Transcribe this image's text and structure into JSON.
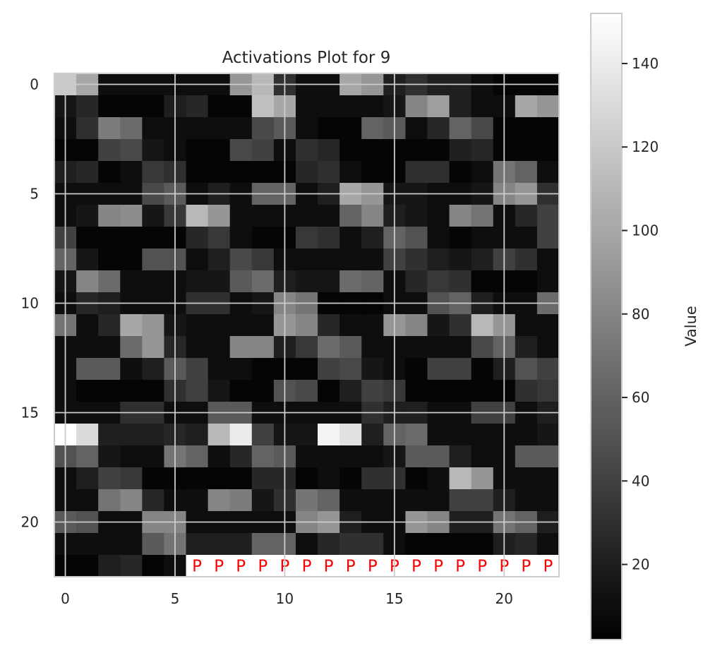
{
  "chart_data": {
    "type": "heatmap",
    "title": "Activations Plot for 9",
    "colormap": "gray",
    "grid": true,
    "colorbar": {
      "label": "Value",
      "min": 2,
      "max": 152,
      "ticks": [
        20,
        40,
        60,
        80,
        100,
        120,
        140
      ]
    },
    "x_ticks": [
      0,
      5,
      10,
      15,
      20
    ],
    "y_ticks": [
      0,
      5,
      10,
      15,
      20
    ],
    "rows": 23,
    "cols": 23,
    "pad_marker": "P",
    "pad_color": "#ff0000",
    "pad_cells": [
      [
        22,
        6
      ],
      [
        22,
        7
      ],
      [
        22,
        8
      ],
      [
        22,
        9
      ],
      [
        22,
        10
      ],
      [
        22,
        11
      ],
      [
        22,
        12
      ],
      [
        22,
        13
      ],
      [
        22,
        14
      ],
      [
        22,
        15
      ],
      [
        22,
        16
      ],
      [
        22,
        17
      ],
      [
        22,
        18
      ],
      [
        22,
        19
      ],
      [
        22,
        20
      ],
      [
        22,
        21
      ],
      [
        22,
        22
      ]
    ],
    "values": [
      [
        120,
        100,
        10,
        10,
        10,
        10,
        10,
        10,
        90,
        110,
        30,
        10,
        10,
        100,
        90,
        20,
        30,
        20,
        20,
        10,
        5,
        5,
        5
      ],
      [
        15,
        25,
        5,
        5,
        5,
        20,
        25,
        5,
        5,
        115,
        100,
        10,
        10,
        10,
        10,
        15,
        80,
        95,
        20,
        10,
        10,
        100,
        90
      ],
      [
        10,
        30,
        75,
        65,
        10,
        10,
        10,
        10,
        10,
        45,
        55,
        10,
        5,
        5,
        60,
        55,
        10,
        25,
        60,
        45,
        5,
        5,
        5
      ],
      [
        5,
        5,
        40,
        45,
        15,
        10,
        5,
        5,
        45,
        40,
        10,
        30,
        25,
        5,
        5,
        5,
        5,
        5,
        20,
        25,
        5,
        5,
        5
      ],
      [
        20,
        25,
        5,
        10,
        35,
        30,
        5,
        5,
        5,
        5,
        5,
        25,
        30,
        10,
        5,
        5,
        30,
        30,
        5,
        10,
        70,
        60,
        10
      ],
      [
        10,
        10,
        10,
        10,
        45,
        55,
        10,
        20,
        10,
        60,
        60,
        10,
        20,
        100,
        90,
        15,
        15,
        10,
        10,
        15,
        80,
        90,
        30
      ],
      [
        10,
        15,
        80,
        85,
        15,
        35,
        110,
        90,
        10,
        10,
        10,
        10,
        10,
        60,
        80,
        20,
        15,
        10,
        80,
        70,
        10,
        25,
        40
      ],
      [
        40,
        5,
        5,
        5,
        5,
        5,
        25,
        35,
        10,
        5,
        5,
        35,
        30,
        10,
        20,
        60,
        50,
        10,
        5,
        10,
        10,
        10,
        40
      ],
      [
        60,
        15,
        5,
        5,
        50,
        50,
        10,
        20,
        45,
        35,
        10,
        10,
        10,
        10,
        10,
        40,
        30,
        20,
        15,
        20,
        40,
        30,
        10
      ],
      [
        15,
        80,
        65,
        10,
        10,
        10,
        15,
        15,
        55,
        65,
        20,
        15,
        15,
        65,
        60,
        10,
        25,
        35,
        30,
        5,
        5,
        5,
        10
      ],
      [
        10,
        25,
        20,
        10,
        10,
        10,
        30,
        30,
        10,
        15,
        80,
        70,
        5,
        5,
        5,
        10,
        10,
        50,
        60,
        20,
        10,
        10,
        65
      ],
      [
        70,
        10,
        25,
        100,
        90,
        15,
        10,
        10,
        10,
        10,
        90,
        80,
        25,
        10,
        10,
        90,
        80,
        15,
        30,
        110,
        90,
        10,
        10
      ],
      [
        10,
        10,
        10,
        65,
        90,
        25,
        10,
        10,
        80,
        80,
        20,
        35,
        65,
        55,
        10,
        10,
        10,
        10,
        10,
        45,
        60,
        20,
        10
      ],
      [
        10,
        55,
        55,
        10,
        20,
        55,
        40,
        10,
        10,
        5,
        5,
        5,
        40,
        45,
        15,
        10,
        5,
        40,
        40,
        5,
        20,
        50,
        40
      ],
      [
        10,
        5,
        5,
        5,
        5,
        30,
        40,
        15,
        5,
        5,
        50,
        45,
        5,
        20,
        40,
        35,
        5,
        5,
        5,
        5,
        5,
        30,
        35
      ],
      [
        10,
        10,
        10,
        30,
        30,
        10,
        10,
        55,
        55,
        10,
        10,
        10,
        10,
        10,
        30,
        20,
        20,
        10,
        10,
        40,
        40,
        10,
        20
      ],
      [
        152,
        130,
        20,
        20,
        20,
        25,
        20,
        110,
        140,
        40,
        15,
        15,
        145,
        135,
        20,
        60,
        65,
        10,
        10,
        10,
        10,
        10,
        15
      ],
      [
        50,
        60,
        15,
        10,
        10,
        70,
        60,
        10,
        25,
        60,
        55,
        10,
        10,
        10,
        10,
        15,
        55,
        55,
        20,
        10,
        10,
        55,
        55
      ],
      [
        10,
        20,
        40,
        35,
        5,
        5,
        5,
        5,
        5,
        25,
        25,
        5,
        10,
        5,
        30,
        30,
        5,
        10,
        110,
        90,
        10,
        10,
        10
      ],
      [
        10,
        10,
        70,
        80,
        25,
        10,
        10,
        80,
        75,
        15,
        30,
        70,
        60,
        10,
        10,
        10,
        10,
        10,
        40,
        40,
        20,
        10,
        10
      ],
      [
        55,
        50,
        10,
        10,
        80,
        80,
        10,
        10,
        10,
        10,
        10,
        80,
        90,
        20,
        10,
        10,
        90,
        80,
        20,
        20,
        70,
        60,
        20
      ],
      [
        10,
        10,
        10,
        10,
        55,
        70,
        20,
        20,
        20,
        60,
        60,
        10,
        25,
        30,
        30,
        10,
        5,
        5,
        5,
        5,
        20,
        25,
        10
      ],
      [
        5,
        5,
        20,
        25,
        5,
        10,
        0,
        0,
        0,
        0,
        0,
        0,
        0,
        0,
        0,
        0,
        0,
        0,
        0,
        0,
        0,
        0,
        0
      ]
    ]
  }
}
